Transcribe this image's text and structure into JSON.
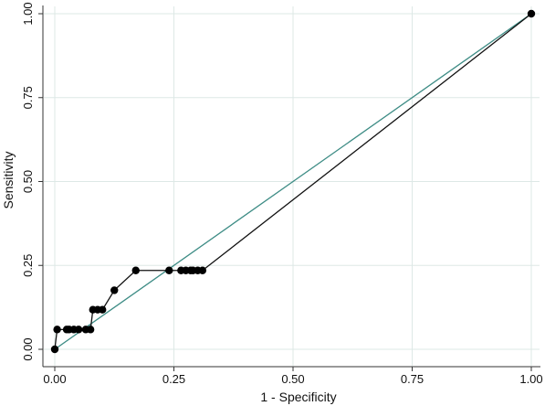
{
  "chart_data": {
    "type": "line",
    "xlabel": "1 - Specificity",
    "ylabel": "Sensitivity",
    "xlim": [
      0,
      1
    ],
    "ylim": [
      0,
      1
    ],
    "x_ticks": [
      0,
      0.25,
      0.5,
      0.75,
      1
    ],
    "y_ticks": [
      0,
      0.25,
      0.5,
      0.75,
      1
    ],
    "x_tick_labels": [
      "0.00",
      "0.25",
      "0.50",
      "0.75",
      "1.00"
    ],
    "y_tick_labels": [
      "0.00",
      "0.25",
      "0.50",
      "0.75",
      "1.00"
    ],
    "grid": true,
    "colors": {
      "roc_line": "#111111",
      "roc_marker": "#000000",
      "reference_line": "#3d8c85",
      "grid": "#dde8e6",
      "axis": "#333333"
    },
    "series": [
      {
        "type": "line-markers",
        "x": [
          0,
          0.005,
          0.025,
          0.03,
          0.04,
          0.05,
          0.065,
          0.075,
          0.08,
          0.09,
          0.1,
          0.125,
          0.17,
          0.24,
          0.265,
          0.275,
          0.285,
          0.29,
          0.3,
          0.31,
          1
        ],
        "y": [
          0,
          0.059,
          0.059,
          0.059,
          0.059,
          0.059,
          0.059,
          0.059,
          0.118,
          0.118,
          0.118,
          0.176,
          0.235,
          0.235,
          0.235,
          0.235,
          0.235,
          0.235,
          0.235,
          0.235,
          1
        ]
      },
      {
        "type": "reference-line",
        "x": [
          0,
          1
        ],
        "y": [
          0,
          1
        ]
      }
    ]
  }
}
